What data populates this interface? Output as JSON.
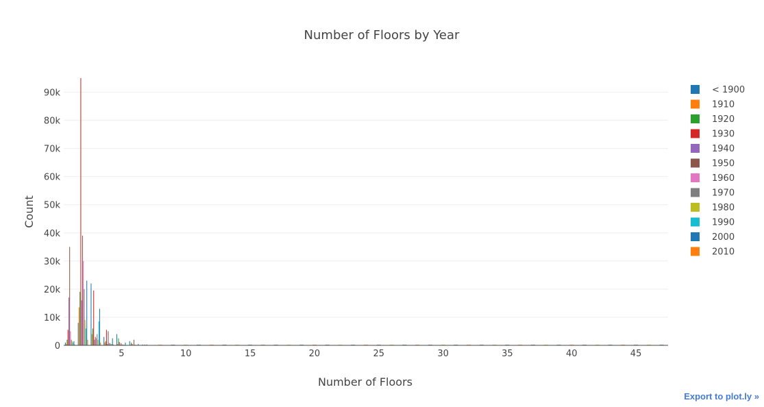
{
  "export_link": "Export to plot.ly »",
  "chart_data": {
    "type": "bar",
    "title": "Number of Floors by Year",
    "xlabel": "Number of Floors",
    "ylabel": "Count",
    "xlim": [
      0.5,
      47.5
    ],
    "ylim": [
      0,
      95000
    ],
    "x_ticks": [
      5,
      10,
      15,
      20,
      25,
      30,
      35,
      40,
      45
    ],
    "y_ticks": [
      0,
      10000,
      20000,
      30000,
      40000,
      50000,
      60000,
      70000,
      80000,
      90000
    ],
    "y_tick_labels": [
      "0",
      "10k",
      "20k",
      "30k",
      "40k",
      "50k",
      "60k",
      "70k",
      "80k",
      "90k"
    ],
    "legend_position": "right",
    "gridlines": "horizontal",
    "x": [
      1,
      2,
      3,
      4,
      5,
      6,
      7
    ],
    "series": [
      {
        "name": "< 1900",
        "color": "#1f77b4",
        "values": [
          1000,
          8000,
          22000,
          3000,
          4000,
          1500,
          300
        ]
      },
      {
        "name": "1910",
        "color": "#ff7f0e",
        "values": [
          500,
          13500,
          4000,
          1000,
          500,
          200,
          100
        ]
      },
      {
        "name": "1920",
        "color": "#2ca02c",
        "values": [
          2000,
          19000,
          6000,
          1500,
          2500,
          1000,
          200
        ]
      },
      {
        "name": "1930",
        "color": "#d62728",
        "values": [
          5500,
          95000,
          19500,
          5500,
          1200,
          500,
          200
        ]
      },
      {
        "name": "1940",
        "color": "#9467bd",
        "values": [
          17000,
          16000,
          2000,
          500,
          200,
          100,
          50
        ]
      },
      {
        "name": "1950",
        "color": "#8c564b",
        "values": [
          35000,
          39000,
          3000,
          5000,
          800,
          2000,
          300
        ]
      },
      {
        "name": "1960",
        "color": "#e377c2",
        "values": [
          5000,
          30000,
          2500,
          800,
          300,
          200,
          100
        ]
      },
      {
        "name": "1970",
        "color": "#7f7f7f",
        "values": [
          2000,
          20000,
          4000,
          800,
          300,
          200,
          100
        ]
      },
      {
        "name": "1980",
        "color": "#bcbd22",
        "values": [
          1500,
          9000,
          2000,
          500,
          200,
          100,
          50
        ]
      },
      {
        "name": "1990",
        "color": "#17becf",
        "values": [
          1000,
          6000,
          8500,
          500,
          200,
          100,
          50
        ]
      },
      {
        "name": "2000",
        "color": "#1f77b4",
        "values": [
          1500,
          23000,
          13000,
          2500,
          1000,
          500,
          100
        ]
      },
      {
        "name": "2010",
        "color": "#ff7f0e",
        "values": [
          300,
          2000,
          1000,
          300,
          100,
          100,
          50
        ]
      }
    ],
    "tail_x": [
      8,
      9,
      10,
      11,
      12,
      13,
      14,
      15,
      16,
      17,
      18,
      19,
      20,
      21,
      22,
      23,
      24,
      25,
      26,
      27,
      28,
      29,
      30,
      31,
      32,
      33,
      34,
      35,
      36,
      37,
      38,
      39,
      40,
      41,
      42,
      43,
      44,
      45,
      46,
      47
    ],
    "tail_value": 200
  }
}
